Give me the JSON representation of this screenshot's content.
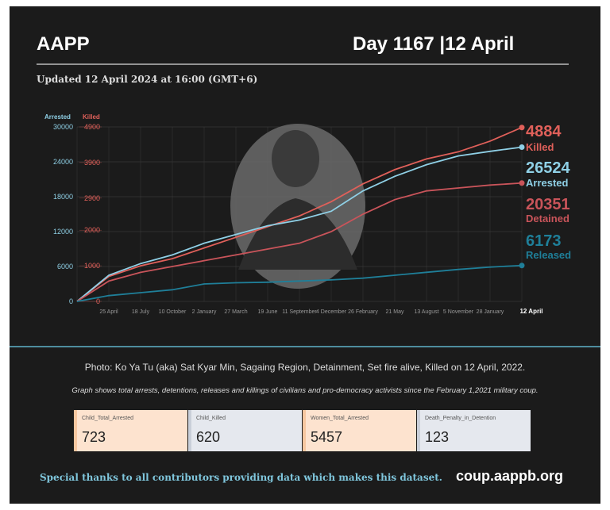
{
  "header": {
    "title": "AAPP",
    "day": "Day 1167 |12 April",
    "updated": "Updated 12 April 2024 at 16:00 (GMT+6)"
  },
  "chart_data": {
    "type": "line",
    "ylabel": "Arrested",
    "y2label": "Killed",
    "categories": [
      null,
      "25 April",
      "18 July",
      "10 October",
      "2 January",
      "27 March",
      "19 June",
      "11 September",
      "4 December",
      "26 February",
      "21 May",
      "13 August",
      "5 November",
      "28 January",
      "12 April"
    ],
    "ylim": [
      0,
      30000
    ],
    "yticks": [
      0,
      6000,
      12000,
      18000,
      24000,
      30000
    ],
    "y2lim": [
      0,
      4900
    ],
    "y2ticks": [
      0,
      1000,
      2000,
      2900,
      3900,
      4900
    ],
    "grid": true,
    "series": [
      {
        "name": "Killed",
        "color": "#e0605a",
        "axis": "y2",
        "values": [
          0,
          700,
          1000,
          1200,
          1500,
          1800,
          2100,
          2400,
          2800,
          3300,
          3700,
          4000,
          4200,
          4500,
          4884
        ]
      },
      {
        "name": "Arrested",
        "color": "#8fd0e6",
        "values": [
          0,
          4500,
          6500,
          8000,
          10000,
          11500,
          13000,
          14000,
          15500,
          19000,
          21500,
          23500,
          25000,
          25800,
          26524
        ]
      },
      {
        "name": "Detained",
        "color": "#c9545a",
        "values": [
          0,
          3500,
          5000,
          6000,
          7000,
          8000,
          9000,
          10000,
          12000,
          15000,
          17500,
          19000,
          19500,
          20000,
          20351
        ]
      },
      {
        "name": "Released",
        "color": "#1f7f99",
        "values": [
          0,
          1000,
          1500,
          2000,
          3000,
          3200,
          3300,
          3500,
          3700,
          4000,
          4500,
          5000,
          5500,
          5900,
          6173
        ]
      }
    ]
  },
  "caption": "Photo: Ko Ya Tu (aka) Sat Kyar Min, Sagaing Region, Detainment, Set fire alive, Killed on 12 April, 2022.",
  "description": "Graph shows total arrests, detentions, releases and killings of civilians and pro-democracy activists since the February 1,2021 military coup.",
  "cards": [
    {
      "label": "Child_Total_Arrested",
      "value": 723
    },
    {
      "label": "Child_Killed",
      "value": 620
    },
    {
      "label": "Women_Total_Arrested",
      "value": 5457
    },
    {
      "label": "Death_Penalty_in_Detention",
      "value": 123
    }
  ],
  "footer": {
    "thanks": "Special thanks to all contributors providing data which makes this dataset.",
    "url": "coup.aappb.org"
  }
}
